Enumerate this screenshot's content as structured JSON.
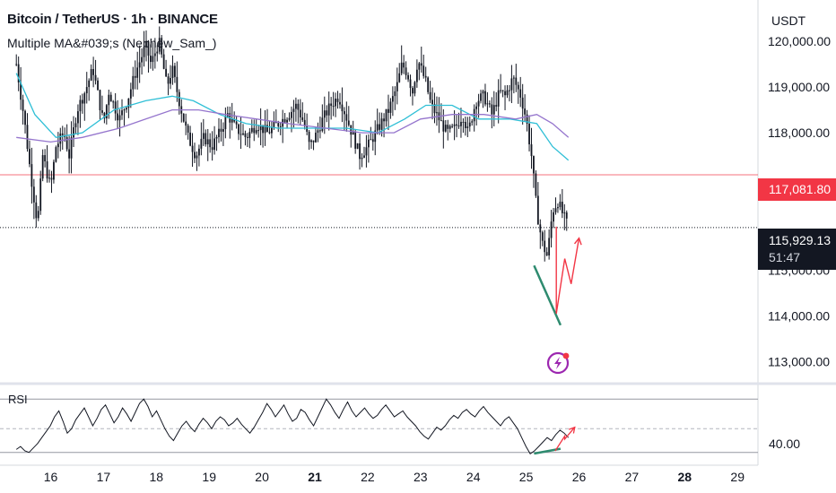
{
  "header": {
    "title": "Bitcoin / TetherUS · 1h · BINANCE",
    "indicator": "Multiple MA&#039;s (Nephew_Sam_)"
  },
  "axis": {
    "currency": "USDT"
  },
  "price_tags": {
    "level": "117,081.80",
    "last_price": "115,929.13",
    "countdown": "51:47"
  },
  "rsi_panel": {
    "label": "RSI",
    "tick_label": "40.00"
  },
  "colors": {
    "level_line": "#f23645",
    "ma_fast": "#2fbfd6",
    "ma_slow": "#9575cd",
    "trend_green": "#2e8b6f",
    "projection_red": "#f23645",
    "candle": "#131722",
    "logo": "#9c27b0"
  },
  "logo": {
    "icon": "lightning-bolt-icon"
  },
  "chart_data": {
    "type": "candlestick",
    "symbol": "BTCUSDT",
    "interval": "1h",
    "exchange": "BINANCE",
    "y_range": [
      112600,
      120900
    ],
    "y_ticks": [
      113000,
      114000,
      115000,
      116000,
      117000,
      118000,
      119000,
      120000
    ],
    "y_tick_labels": [
      "113,000.00",
      "114,000.00",
      "115,000.00",
      "",
      "",
      "118,000.00",
      "119,000.00",
      "120,000.00"
    ],
    "x_range_days": [
      15.35,
      29.4
    ],
    "x_ticks": [
      16,
      17,
      18,
      19,
      20,
      21,
      22,
      23,
      24,
      25,
      26,
      27,
      28,
      29
    ],
    "x_tick_labels": [
      "16",
      "17",
      "18",
      "19",
      "20",
      "21",
      "22",
      "23",
      "24",
      "25",
      "26",
      "27",
      "28",
      "29"
    ],
    "bold_ticks": [
      "21",
      "28"
    ],
    "last_price": 115929.13,
    "horizontal_level": 117081.8,
    "price_path": [
      [
        15.35,
        119500
      ],
      [
        15.5,
        118300
      ],
      [
        15.6,
        117300
      ],
      [
        15.75,
        116000
      ],
      [
        15.85,
        117500
      ],
      [
        16.0,
        116800
      ],
      [
        16.1,
        117700
      ],
      [
        16.25,
        118000
      ],
      [
        16.35,
        117500
      ],
      [
        16.5,
        118500
      ],
      [
        16.65,
        118900
      ],
      [
        16.8,
        119400
      ],
      [
        16.9,
        118800
      ],
      [
        17.0,
        118200
      ],
      [
        17.1,
        118900
      ],
      [
        17.3,
        118300
      ],
      [
        17.45,
        118700
      ],
      [
        17.6,
        119300
      ],
      [
        17.8,
        119900
      ],
      [
        17.9,
        119500
      ],
      [
        18.05,
        120000
      ],
      [
        18.2,
        119000
      ],
      [
        18.3,
        119400
      ],
      [
        18.45,
        118600
      ],
      [
        18.6,
        117900
      ],
      [
        18.75,
        117500
      ],
      [
        18.9,
        117900
      ],
      [
        19.05,
        117700
      ],
      [
        19.2,
        118000
      ],
      [
        19.35,
        118400
      ],
      [
        19.5,
        118100
      ],
      [
        19.7,
        117900
      ],
      [
        19.9,
        118200
      ],
      [
        20.1,
        118000
      ],
      [
        20.3,
        118200
      ],
      [
        20.5,
        118400
      ],
      [
        20.65,
        118600
      ],
      [
        20.8,
        118200
      ],
      [
        20.9,
        117700
      ],
      [
        21.0,
        117900
      ],
      [
        21.15,
        118300
      ],
      [
        21.3,
        118600
      ],
      [
        21.45,
        118800
      ],
      [
        21.55,
        118500
      ],
      [
        21.7,
        118000
      ],
      [
        21.85,
        117500
      ],
      [
        22.0,
        117700
      ],
      [
        22.1,
        117900
      ],
      [
        22.25,
        118200
      ],
      [
        22.4,
        118500
      ],
      [
        22.55,
        119000
      ],
      [
        22.65,
        119500
      ],
      [
        22.75,
        119300
      ],
      [
        22.85,
        118900
      ],
      [
        22.95,
        119600
      ],
      [
        23.1,
        119100
      ],
      [
        23.2,
        118600
      ],
      [
        23.35,
        118300
      ],
      [
        23.5,
        118000
      ],
      [
        23.65,
        118100
      ],
      [
        23.8,
        118400
      ],
      [
        23.9,
        118000
      ],
      [
        24.05,
        118700
      ],
      [
        24.2,
        118800
      ],
      [
        24.35,
        118400
      ],
      [
        24.5,
        118900
      ],
      [
        24.6,
        118800
      ],
      [
        24.75,
        119200
      ],
      [
        24.9,
        118800
      ],
      [
        25.0,
        118300
      ],
      [
        25.1,
        117500
      ],
      [
        25.2,
        116300
      ],
      [
        25.3,
        115600
      ],
      [
        25.4,
        115300
      ],
      [
        25.5,
        116300
      ],
      [
        25.6,
        116500
      ],
      [
        25.7,
        116200
      ],
      [
        25.8,
        115929
      ]
    ],
    "moving_averages": [
      {
        "color": "#2fbfd6",
        "points": [
          [
            15.35,
            119300
          ],
          [
            15.7,
            118400
          ],
          [
            16.1,
            117900
          ],
          [
            16.6,
            118000
          ],
          [
            17.2,
            118500
          ],
          [
            17.8,
            118700
          ],
          [
            18.3,
            118800
          ],
          [
            18.7,
            118700
          ],
          [
            19.2,
            118400
          ],
          [
            19.7,
            118200
          ],
          [
            20.3,
            118100
          ],
          [
            21.0,
            118100
          ],
          [
            21.6,
            118100
          ],
          [
            22.2,
            118000
          ],
          [
            22.7,
            118300
          ],
          [
            23.1,
            118600
          ],
          [
            23.6,
            118600
          ],
          [
            24.1,
            118300
          ],
          [
            24.7,
            118300
          ],
          [
            25.2,
            118200
          ],
          [
            25.5,
            117700
          ],
          [
            25.8,
            117400
          ]
        ]
      },
      {
        "color": "#9575cd",
        "points": [
          [
            15.35,
            117900
          ],
          [
            16.0,
            117800
          ],
          [
            16.6,
            117900
          ],
          [
            17.3,
            118100
          ],
          [
            17.8,
            118300
          ],
          [
            18.3,
            118500
          ],
          [
            18.8,
            118500
          ],
          [
            19.3,
            118400
          ],
          [
            19.9,
            118300
          ],
          [
            20.5,
            118200
          ],
          [
            21.2,
            118100
          ],
          [
            21.9,
            118000
          ],
          [
            22.5,
            118000
          ],
          [
            23.0,
            118300
          ],
          [
            23.6,
            118400
          ],
          [
            24.2,
            118400
          ],
          [
            24.8,
            118300
          ],
          [
            25.2,
            118400
          ],
          [
            25.5,
            118200
          ],
          [
            25.8,
            117900
          ]
        ]
      }
    ],
    "annotations": [
      {
        "type": "trendline",
        "color": "#2e8b6f",
        "points": [
          [
            25.15,
            115100
          ],
          [
            25.65,
            113800
          ]
        ]
      },
      {
        "type": "projection",
        "color": "#f23645",
        "points": [
          [
            25.57,
            115950
          ],
          [
            25.57,
            114050
          ],
          [
            25.73,
            115250
          ],
          [
            25.85,
            114700
          ],
          [
            26.0,
            115700
          ]
        ]
      }
    ],
    "rsi": {
      "y_range": [
        32,
        78
      ],
      "bands": [
        70,
        50,
        30
      ],
      "labeled_tick": 40,
      "values": [
        36,
        38,
        35,
        34,
        37,
        40,
        44,
        48,
        52,
        58,
        62,
        55,
        47,
        50,
        56,
        60,
        64,
        58,
        52,
        57,
        63,
        66,
        60,
        54,
        58,
        64,
        60,
        55,
        61,
        67,
        70,
        65,
        58,
        62,
        56,
        50,
        45,
        42,
        47,
        52,
        55,
        51,
        48,
        53,
        57,
        54,
        50,
        55,
        58,
        56,
        52,
        54,
        57,
        53,
        50,
        47,
        51,
        56,
        61,
        67,
        63,
        58,
        62,
        66,
        60,
        55,
        57,
        63,
        61,
        56,
        52,
        58,
        64,
        70,
        66,
        61,
        57,
        63,
        68,
        62,
        58,
        61,
        64,
        60,
        57,
        59,
        63,
        66,
        62,
        58,
        60,
        62,
        58,
        55,
        52,
        48,
        45,
        43,
        47,
        51,
        49,
        52,
        56,
        59,
        57,
        61,
        63,
        60,
        58,
        62,
        65,
        61,
        58,
        55,
        52,
        56,
        58,
        54,
        50,
        44,
        38,
        33,
        35,
        38,
        41,
        44,
        42,
        46,
        49,
        47,
        44
      ],
      "rsi_trendline": [
        [
          25.15,
          33.2
        ],
        [
          25.65,
          36.5
        ]
      ],
      "rsi_projection": [
        [
          25.55,
          35
        ],
        [
          25.73,
          45
        ],
        [
          25.73,
          43
        ],
        [
          25.92,
          51
        ]
      ]
    }
  }
}
